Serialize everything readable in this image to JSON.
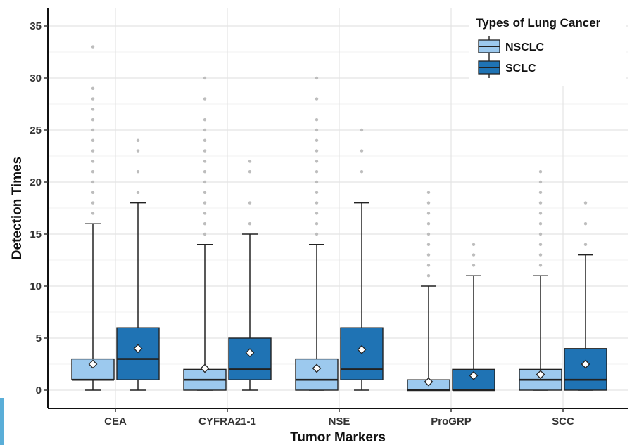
{
  "chart_data": {
    "type": "box",
    "xlabel": "Tumor Markers",
    "ylabel": "Detection Times",
    "categories": [
      "CEA",
      "CYFRA21-1",
      "NSE",
      "ProGRP",
      "SCC"
    ],
    "ylim": [
      -1.5,
      36.5
    ],
    "yticks": [
      0,
      5,
      10,
      15,
      20,
      25,
      30,
      35
    ],
    "grid": true,
    "legend": {
      "title": "Types of Lung Cancer",
      "placement": "top-right"
    },
    "series": [
      {
        "name": "NSCLC",
        "color": "#9cc9ee",
        "boxes": [
          {
            "min": 0,
            "q1": 1,
            "median": 1,
            "q3": 3,
            "max": 16,
            "mean": 2.5,
            "outliers": [
              17,
              18,
              19,
              20,
              21,
              22,
              23,
              24,
              25,
              26,
              27,
              28,
              29,
              33
            ]
          },
          {
            "min": 0,
            "q1": 0,
            "median": 1,
            "q3": 2,
            "max": 14,
            "mean": 2.1,
            "outliers": [
              15,
              16,
              17,
              18,
              19,
              20,
              21,
              22,
              23,
              24,
              25,
              26,
              28,
              30
            ]
          },
          {
            "min": 0,
            "q1": 0,
            "median": 1,
            "q3": 3,
            "max": 14,
            "mean": 2.1,
            "outliers": [
              15,
              16,
              17,
              18,
              19,
              20,
              21,
              22,
              23,
              24,
              25,
              26,
              28,
              30
            ]
          },
          {
            "min": 0,
            "q1": 0,
            "median": 0,
            "q3": 1,
            "max": 10,
            "mean": 0.8,
            "outliers": [
              11,
              12,
              13,
              14,
              15,
              16,
              17,
              18,
              19
            ]
          },
          {
            "min": 0,
            "q1": 0,
            "median": 1,
            "q3": 2,
            "max": 11,
            "mean": 1.5,
            "outliers": [
              12,
              13,
              14,
              15,
              16,
              17,
              18,
              19,
              20,
              21
            ]
          }
        ]
      },
      {
        "name": "SCLC",
        "color": "#1f73b4",
        "boxes": [
          {
            "min": 0,
            "q1": 1,
            "median": 3,
            "q3": 6,
            "max": 18,
            "mean": 4.0,
            "outliers": [
              19,
              21,
              23,
              24
            ]
          },
          {
            "min": 0,
            "q1": 1,
            "median": 2,
            "q3": 5,
            "max": 15,
            "mean": 3.6,
            "outliers": [
              16,
              18,
              21,
              22
            ]
          },
          {
            "min": 0,
            "q1": 1,
            "median": 2,
            "q3": 6,
            "max": 18,
            "mean": 3.9,
            "outliers": [
              21,
              23,
              25
            ]
          },
          {
            "min": 0,
            "q1": 0,
            "median": 0,
            "q3": 2,
            "max": 11,
            "mean": 1.4,
            "outliers": [
              12,
              13,
              14
            ]
          },
          {
            "min": 0,
            "q1": 0,
            "median": 1,
            "q3": 4,
            "max": 13,
            "mean": 2.5,
            "outliers": [
              14,
              16,
              18
            ]
          }
        ]
      }
    ]
  }
}
